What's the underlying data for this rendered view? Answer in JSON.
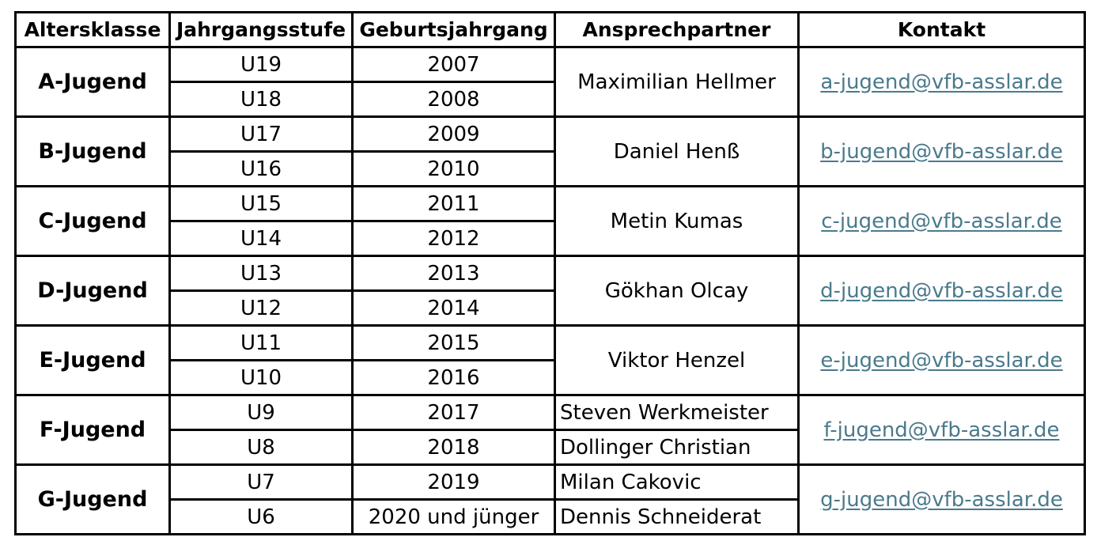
{
  "headers": {
    "altersklasse": "Altersklasse",
    "jahrgangsstufe": "Jahrgangsstufe",
    "geburtsjahrgang": "Geburtsjahrgang",
    "ansprechpartner": "Ansprechpartner",
    "kontakt": "Kontakt"
  },
  "groups": [
    {
      "name": "A-Jugend",
      "rows": [
        {
          "stufe": "U19",
          "jahrgang": "2007"
        },
        {
          "stufe": "U18",
          "jahrgang": "2008"
        }
      ],
      "contact_person": "Maximilian Hellmer",
      "email": "a-jugend@vfb-asslar.de"
    },
    {
      "name": "B-Jugend",
      "rows": [
        {
          "stufe": "U17",
          "jahrgang": "2009"
        },
        {
          "stufe": "U16",
          "jahrgang": "2010"
        }
      ],
      "contact_person": "Daniel Henß",
      "email": "b-jugend@vfb-asslar.de"
    },
    {
      "name": "C-Jugend",
      "rows": [
        {
          "stufe": "U15",
          "jahrgang": "2011"
        },
        {
          "stufe": "U14",
          "jahrgang": "2012"
        }
      ],
      "contact_person": "Metin Kumas",
      "email": "c-jugend@vfb-asslar.de"
    },
    {
      "name": "D-Jugend",
      "rows": [
        {
          "stufe": "U13",
          "jahrgang": "2013"
        },
        {
          "stufe": "U12",
          "jahrgang": "2014"
        }
      ],
      "contact_person": "Gökhan Olcay",
      "email": "d-jugend@vfb-asslar.de"
    },
    {
      "name": "E-Jugend",
      "rows": [
        {
          "stufe": "U11",
          "jahrgang": "2015"
        },
        {
          "stufe": "U10",
          "jahrgang": "2016"
        }
      ],
      "contact_person": "Viktor Henzel",
      "email": "e-jugend@vfb-asslar.de"
    },
    {
      "name": "F-Jugend",
      "rows": [
        {
          "stufe": "U9",
          "jahrgang": "2017",
          "person": "Steven Werkmeister"
        },
        {
          "stufe": "U8",
          "jahrgang": "2018",
          "person": "Dollinger Christian"
        }
      ],
      "email": "f-jugend@vfb-asslar.de"
    },
    {
      "name": "G-Jugend",
      "rows": [
        {
          "stufe": "U7",
          "jahrgang": "2019",
          "person": "Milan Cakovic"
        },
        {
          "stufe": "U6",
          "jahrgang": "2020 und jünger",
          "person": "Dennis Schneiderat"
        }
      ],
      "email": "g-jugend@vfb-asslar.de"
    }
  ],
  "colors": {
    "link": "#4a7a8c",
    "border": "#000000"
  }
}
